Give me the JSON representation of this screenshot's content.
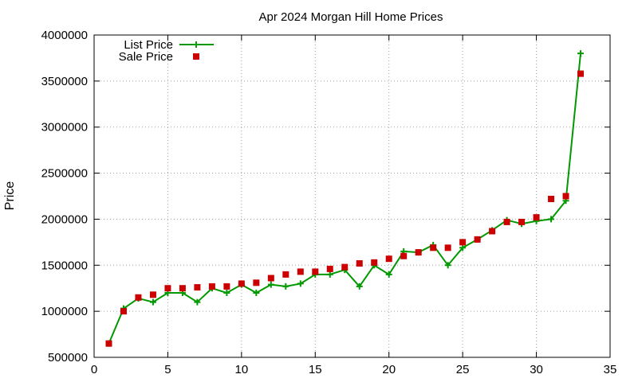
{
  "chart_data": {
    "type": "line",
    "title": "Apr 2024 Morgan Hill Home Prices",
    "xlabel": "",
    "ylabel": "Price",
    "xlim": [
      0,
      35
    ],
    "ylim": [
      500000,
      4000000
    ],
    "x_ticks": [
      "0",
      "5",
      "10",
      "15",
      "20",
      "25",
      "30",
      "35"
    ],
    "y_ticks": [
      "500000",
      "1000000",
      "1500000",
      "2000000",
      "2500000",
      "3000000",
      "3500000",
      "4000000"
    ],
    "x_tick_values": [
      0,
      5,
      10,
      15,
      20,
      25,
      30,
      35
    ],
    "y_tick_values": [
      500000,
      1000000,
      1500000,
      2000000,
      2500000,
      3000000,
      3500000,
      4000000
    ],
    "grid": true,
    "legend_position": "top-left",
    "x": [
      1,
      2,
      3,
      4,
      5,
      6,
      7,
      8,
      9,
      10,
      11,
      12,
      13,
      14,
      15,
      16,
      17,
      18,
      19,
      20,
      21,
      22,
      23,
      24,
      25,
      26,
      27,
      28,
      29,
      30,
      31,
      32,
      33
    ],
    "series": [
      {
        "name": "List Price",
        "style": "linespoints",
        "color": "#009900",
        "values": [
          650000,
          1030000,
          1140000,
          1100000,
          1200000,
          1200000,
          1100000,
          1250000,
          1200000,
          1290000,
          1200000,
          1290000,
          1270000,
          1300000,
          1400000,
          1400000,
          1450000,
          1270000,
          1500000,
          1400000,
          1650000,
          1640000,
          1720000,
          1500000,
          1690000,
          1780000,
          1880000,
          1990000,
          1950000,
          1980000,
          2000000,
          2200000,
          3800000
        ]
      },
      {
        "name": "Sale Price",
        "style": "points",
        "color": "#cc0000",
        "values": [
          650000,
          1000000,
          1150000,
          1180000,
          1250000,
          1250000,
          1260000,
          1270000,
          1270000,
          1300000,
          1310000,
          1360000,
          1400000,
          1430000,
          1430000,
          1460000,
          1480000,
          1520000,
          1530000,
          1570000,
          1600000,
          1640000,
          1690000,
          1690000,
          1750000,
          1780000,
          1870000,
          1970000,
          1970000,
          2020000,
          2220000,
          2250000,
          3580000
        ]
      }
    ]
  }
}
